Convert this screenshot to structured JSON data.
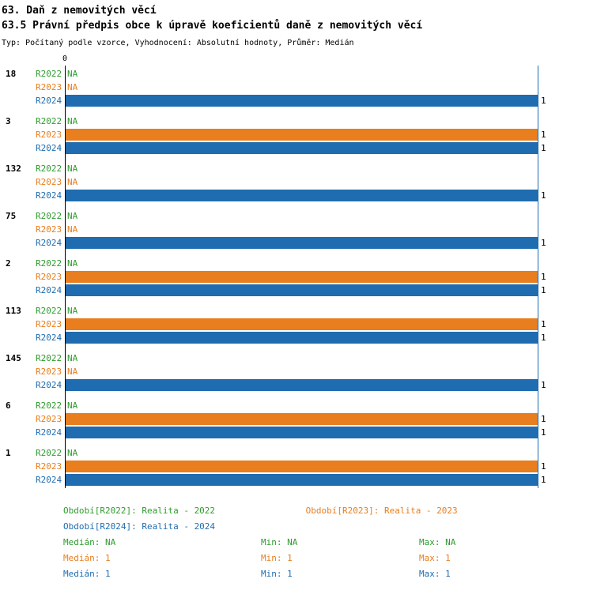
{
  "colors": {
    "axis": "#000000",
    "gridline": "#1F6CB0",
    "series": {
      "R2022": "#2E9B2E",
      "R2023": "#E87E1E",
      "R2024": "#1F6CB0"
    }
  },
  "chart_data": {
    "type": "bar",
    "orientation": "horizontal",
    "title": "63. Daň z nemovitých věcí",
    "subtitle": "63.5 Právní předpis obce k úpravě koeficientů daně z nemovitých věcí",
    "meta": "Typ: Počítaný podle vzorce, Vyhodnocení: Absolutní hodnoty, Průměr: Medián",
    "xlabel": "",
    "ylabel": "",
    "xlim": [
      0,
      1
    ],
    "x_ticks": [
      {
        "value": 0,
        "label": "0"
      }
    ],
    "na_label": "NA",
    "series": [
      "R2022",
      "R2023",
      "R2024"
    ],
    "groups": [
      {
        "label": "18",
        "bars": [
          {
            "series": "R2022",
            "value": "NA"
          },
          {
            "series": "R2023",
            "value": "NA"
          },
          {
            "series": "R2024",
            "value": 1
          }
        ]
      },
      {
        "label": "3",
        "bars": [
          {
            "series": "R2022",
            "value": "NA"
          },
          {
            "series": "R2023",
            "value": 1
          },
          {
            "series": "R2024",
            "value": 1
          }
        ]
      },
      {
        "label": "132",
        "bars": [
          {
            "series": "R2022",
            "value": "NA"
          },
          {
            "series": "R2023",
            "value": "NA"
          },
          {
            "series": "R2024",
            "value": 1
          }
        ]
      },
      {
        "label": "75",
        "bars": [
          {
            "series": "R2022",
            "value": "NA"
          },
          {
            "series": "R2023",
            "value": "NA"
          },
          {
            "series": "R2024",
            "value": 1
          }
        ]
      },
      {
        "label": "2",
        "bars": [
          {
            "series": "R2022",
            "value": "NA"
          },
          {
            "series": "R2023",
            "value": 1
          },
          {
            "series": "R2024",
            "value": 1
          }
        ]
      },
      {
        "label": "113",
        "bars": [
          {
            "series": "R2022",
            "value": "NA"
          },
          {
            "series": "R2023",
            "value": 1
          },
          {
            "series": "R2024",
            "value": 1
          }
        ]
      },
      {
        "label": "145",
        "bars": [
          {
            "series": "R2022",
            "value": "NA"
          },
          {
            "series": "R2023",
            "value": "NA"
          },
          {
            "series": "R2024",
            "value": 1
          }
        ]
      },
      {
        "label": "6",
        "bars": [
          {
            "series": "R2022",
            "value": "NA"
          },
          {
            "series": "R2023",
            "value": 1
          },
          {
            "series": "R2024",
            "value": 1
          }
        ]
      },
      {
        "label": "1",
        "bars": [
          {
            "series": "R2022",
            "value": "NA"
          },
          {
            "series": "R2023",
            "value": 1
          },
          {
            "series": "R2024",
            "value": 1
          }
        ]
      }
    ],
    "legend": [
      {
        "series": "R2022",
        "label": "Období[R2022]: Realita - 2022"
      },
      {
        "series": "R2023",
        "label": "Období[R2023]: Realita - 2023"
      },
      {
        "series": "R2024",
        "label": "Období[R2024]: Realita - 2024"
      }
    ],
    "stats": [
      {
        "series": "R2022",
        "cells": [
          "Medián: NA",
          "Min: NA",
          "Max: NA"
        ]
      },
      {
        "series": "R2023",
        "cells": [
          "Medián: 1",
          "Min: 1",
          "Max: 1"
        ]
      },
      {
        "series": "R2024",
        "cells": [
          "Medián: 1",
          "Min: 1",
          "Max: 1"
        ]
      }
    ],
    "legend_position": "bottom",
    "grid": false
  }
}
